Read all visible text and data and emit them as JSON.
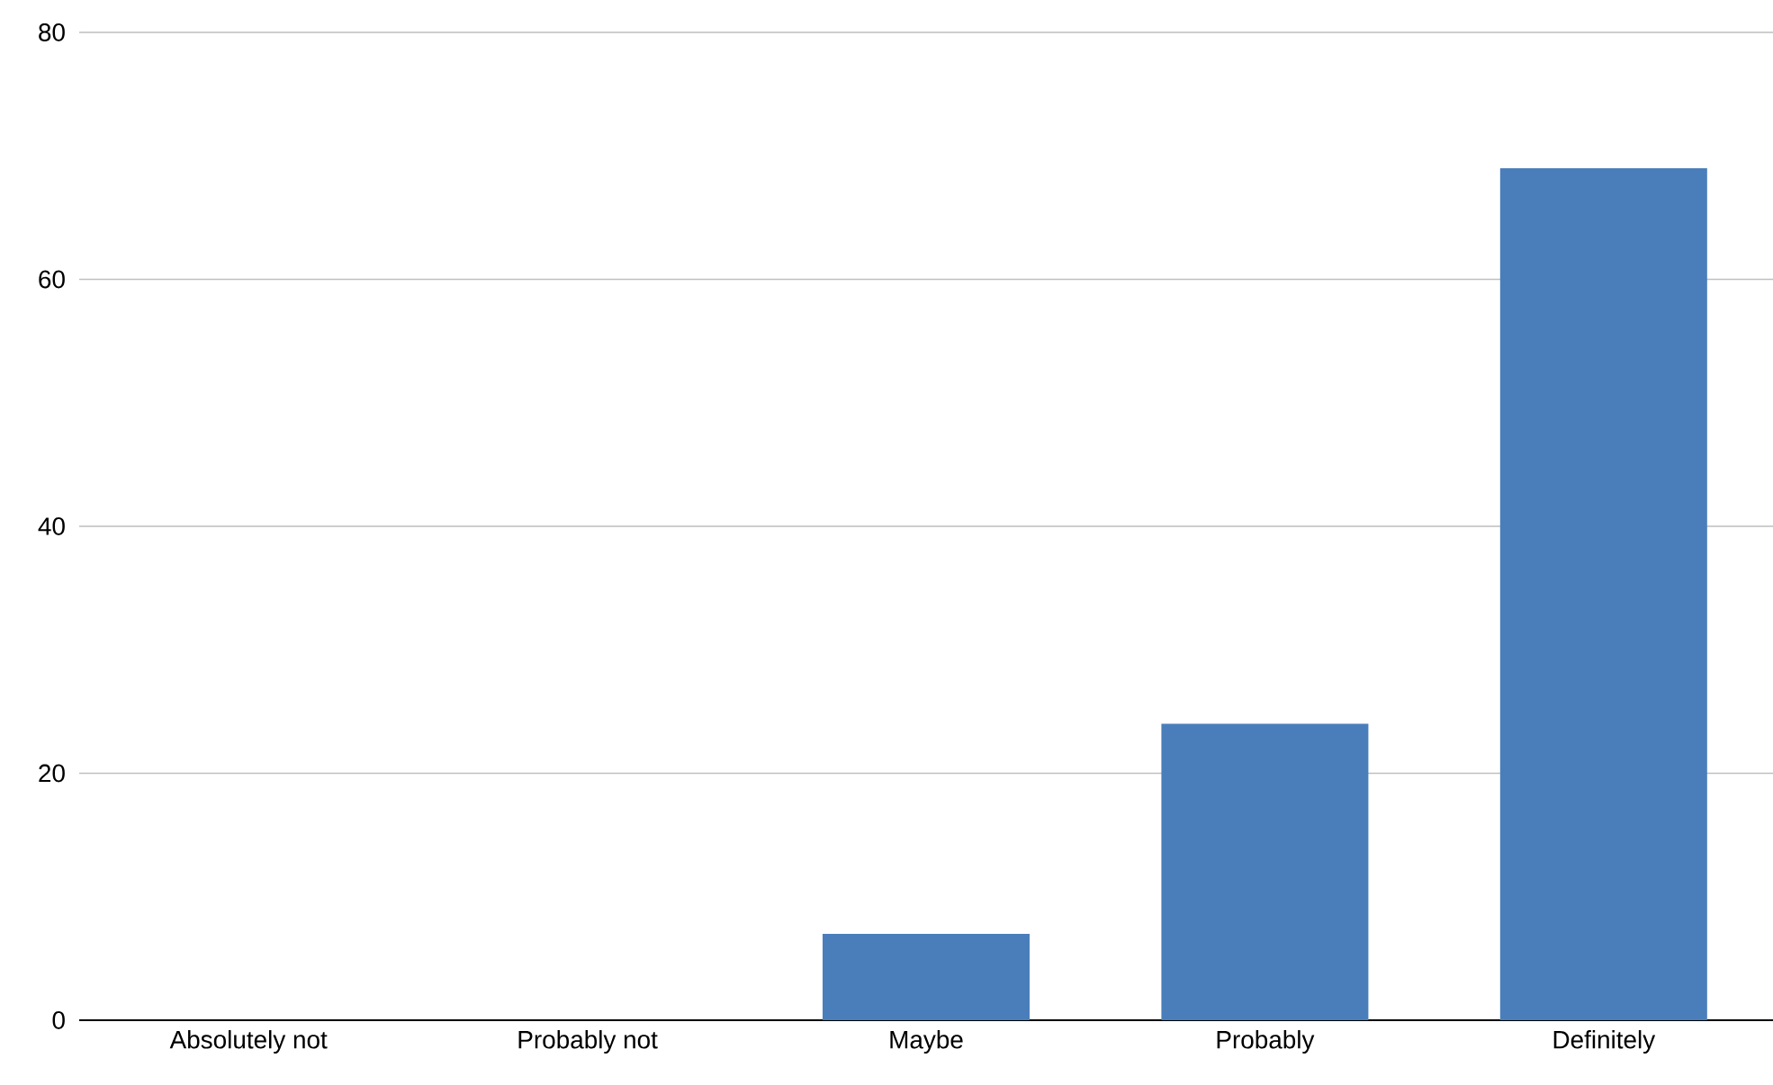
{
  "chart_data": {
    "type": "bar",
    "categories": [
      "Absolutely not",
      "Probably not",
      "Maybe",
      "Probably",
      "Definitely"
    ],
    "values": [
      0,
      0,
      7,
      24,
      69
    ],
    "color": "#4a7ebb",
    "ylim": [
      0,
      80
    ],
    "yticks": [
      0,
      20,
      40,
      60,
      80
    ],
    "grid": "y"
  }
}
